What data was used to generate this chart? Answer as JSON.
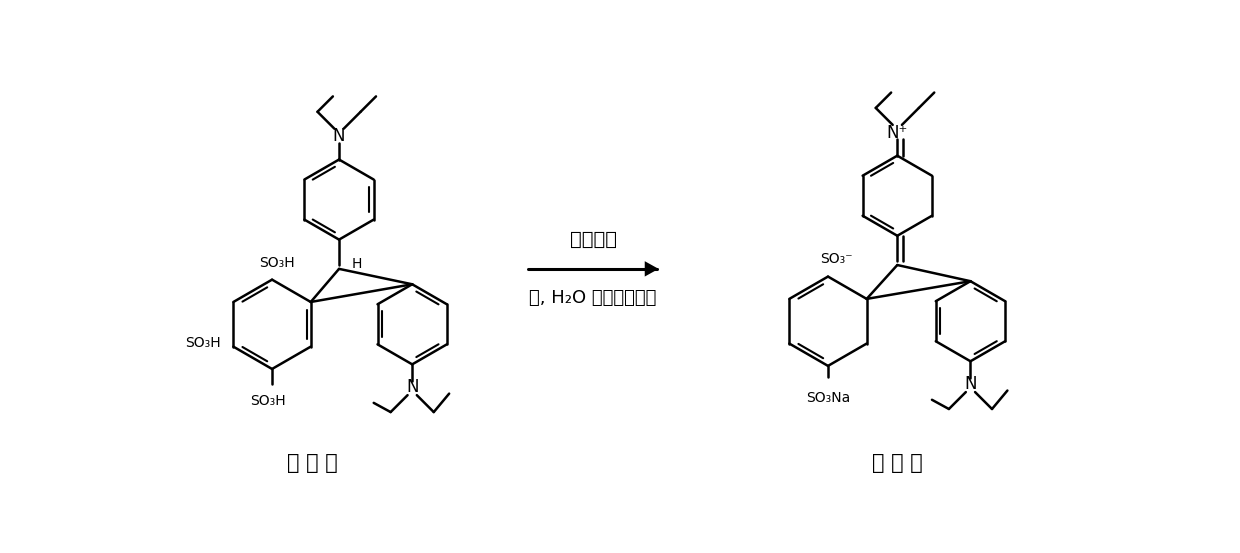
{
  "background_color": "#ffffff",
  "line_color": "#000000",
  "lw": 1.8,
  "lw_inner": 1.5,
  "arrow_text_line1": "四价铈盐",
  "arrow_text_line2": "酸, H₂O 或者混合溶剂",
  "label_left": "酸 性 蓝",
  "label_right": "异 硫 蓝",
  "label_fontsize": 15,
  "arrow_fontsize": 14,
  "chem_fontsize": 10,
  "n_fontsize": 12,
  "figsize": [
    12.4,
    5.53
  ],
  "dpi": 100
}
